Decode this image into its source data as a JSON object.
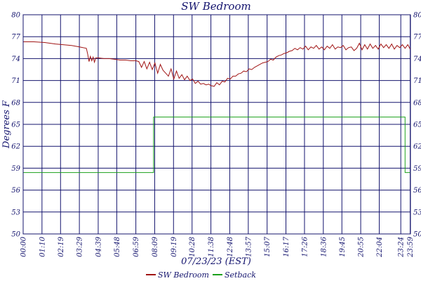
{
  "chart_data": {
    "type": "line",
    "title": "SW Bedroom",
    "xlabel": "07/23/23 (EST)",
    "ylabel": "Degrees F",
    "ylim": [
      50,
      80
    ],
    "xlim": [
      0,
      1440
    ],
    "grid": true,
    "legend_position": "bottom-center",
    "colors": {
      "frame": "#14146e",
      "grid": "#14146e"
    },
    "y_ticks": [
      "50",
      "53",
      "56",
      "59",
      "62",
      "65",
      "68",
      "71",
      "74",
      "77",
      "80"
    ],
    "x_ticks": [
      {
        "label": "00:00",
        "value": 0
      },
      {
        "label": "01:10",
        "value": 70
      },
      {
        "label": "02:19",
        "value": 139
      },
      {
        "label": "03:29",
        "value": 209
      },
      {
        "label": "04:39",
        "value": 279
      },
      {
        "label": "05:48",
        "value": 348
      },
      {
        "label": "06:59",
        "value": 419
      },
      {
        "label": "08:09",
        "value": 489
      },
      {
        "label": "09:19",
        "value": 559
      },
      {
        "label": "10:28",
        "value": 628
      },
      {
        "label": "11:38",
        "value": 698
      },
      {
        "label": "12:48",
        "value": 768
      },
      {
        "label": "13:57",
        "value": 837
      },
      {
        "label": "15:07",
        "value": 907
      },
      {
        "label": "16:17",
        "value": 977
      },
      {
        "label": "17:26",
        "value": 1046
      },
      {
        "label": "18:36",
        "value": 1116
      },
      {
        "label": "19:45",
        "value": 1185
      },
      {
        "label": "20:55",
        "value": 1255
      },
      {
        "label": "22:04",
        "value": 1324
      },
      {
        "label": "23:24",
        "value": 1404
      },
      {
        "label": "23:59",
        "value": 1439
      }
    ],
    "series": [
      {
        "name": "SW Bedroom",
        "color": "#a01414",
        "x": [
          0,
          40,
          80,
          120,
          180,
          209,
          235,
          240,
          245,
          250,
          255,
          260,
          265,
          270,
          280,
          300,
          320,
          340,
          360,
          380,
          400,
          420,
          430,
          440,
          450,
          460,
          470,
          480,
          490,
          500,
          510,
          520,
          530,
          540,
          550,
          560,
          570,
          580,
          590,
          600,
          610,
          620,
          630,
          640,
          650,
          660,
          670,
          680,
          690,
          698,
          710,
          720,
          730,
          740,
          750,
          760,
          770,
          780,
          790,
          800,
          810,
          820,
          830,
          840,
          850,
          860,
          870,
          880,
          890,
          900,
          910,
          920,
          930,
          940,
          950,
          960,
          970,
          980,
          990,
          1000,
          1010,
          1020,
          1030,
          1040,
          1050,
          1060,
          1070,
          1080,
          1090,
          1100,
          1110,
          1120,
          1130,
          1140,
          1150,
          1160,
          1170,
          1180,
          1190,
          1200,
          1210,
          1220,
          1230,
          1240,
          1250,
          1260,
          1270,
          1280,
          1290,
          1300,
          1310,
          1320,
          1330,
          1340,
          1350,
          1360,
          1370,
          1380,
          1390,
          1400,
          1410,
          1420,
          1430,
          1439
        ],
        "values": [
          76.3,
          76.3,
          76.2,
          76.0,
          75.8,
          75.6,
          75.4,
          74.6,
          73.6,
          74.3,
          73.7,
          74.2,
          73.5,
          74.1,
          74.1,
          74.0,
          74.0,
          73.9,
          73.8,
          73.8,
          73.7,
          73.7,
          73.6,
          72.8,
          73.6,
          72.6,
          73.5,
          72.5,
          73.4,
          72.0,
          73.2,
          72.4,
          72.0,
          71.6,
          72.6,
          71.2,
          72.3,
          71.3,
          71.8,
          71.1,
          71.6,
          71.0,
          71.2,
          70.6,
          70.9,
          70.5,
          70.6,
          70.4,
          70.5,
          70.3,
          70.2,
          70.7,
          70.4,
          70.9,
          70.8,
          71.3,
          71.2,
          71.6,
          71.6,
          71.9,
          72.0,
          72.3,
          72.2,
          72.6,
          72.5,
          72.8,
          73.0,
          73.2,
          73.4,
          73.5,
          73.6,
          73.9,
          73.8,
          74.2,
          74.4,
          74.5,
          74.7,
          74.8,
          75.0,
          75.1,
          75.4,
          75.2,
          75.5,
          75.3,
          75.7,
          75.2,
          75.6,
          75.4,
          75.8,
          75.3,
          75.6,
          75.2,
          75.7,
          75.4,
          75.9,
          75.3,
          75.6,
          75.5,
          75.8,
          75.2,
          75.5,
          75.6,
          75.1,
          75.4,
          76.1,
          75.2,
          75.9,
          75.3,
          76.0,
          75.4,
          75.8,
          75.3,
          76.0,
          75.5,
          75.9,
          75.4,
          76.0,
          75.3,
          75.8,
          75.5,
          75.9,
          75.4,
          75.9,
          75.3
        ]
      },
      {
        "name": "Setback",
        "color": "#1aa01a",
        "x": [
          0,
          485,
          485,
          1420,
          1420,
          1439
        ],
        "values": [
          58.4,
          58.4,
          66.0,
          66.0,
          58.4,
          58.4
        ]
      }
    ]
  }
}
